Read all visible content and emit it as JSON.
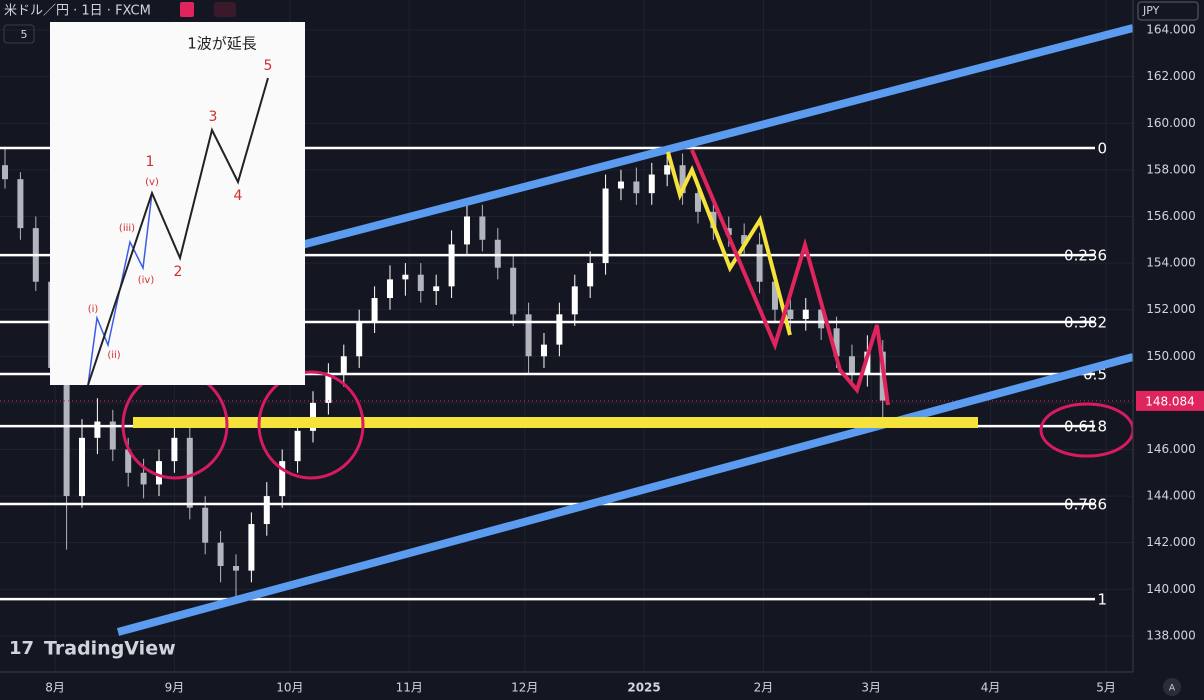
{
  "chart_data": {
    "type": "candlestick",
    "header": "米ドル／円 · 1日 · FXCM",
    "interval_box": "5",
    "currency": "JPY",
    "brand": "TradingView",
    "scale_mode": "A",
    "up_color": "#ffffff",
    "down_color": "#b2b5be",
    "xlim": [
      -14.3,
      280
    ],
    "ylim": [
      136.45,
      165.29
    ],
    "xticks": [
      {
        "value": 0,
        "label": "8月"
      },
      {
        "value": 31,
        "label": "9月"
      },
      {
        "value": 61,
        "label": "10月"
      },
      {
        "value": 92,
        "label": "11月"
      },
      {
        "value": 122,
        "label": "12月"
      },
      {
        "value": 153,
        "label": "2025"
      },
      {
        "value": 184,
        "label": "2月"
      },
      {
        "value": 212,
        "label": "3月"
      },
      {
        "value": 243,
        "label": "4月"
      },
      {
        "value": 273,
        "label": "5月"
      }
    ],
    "yticks": [
      {
        "value": 138,
        "label": "138.000"
      },
      {
        "value": 140,
        "label": "140.000"
      },
      {
        "value": 142,
        "label": "142.000"
      },
      {
        "value": 144,
        "label": "144.000"
      },
      {
        "value": 146,
        "label": "146.000"
      },
      {
        "value": 148,
        "label": "148.000"
      },
      {
        "value": 150,
        "label": "150.000"
      },
      {
        "value": 152,
        "label": "152.000"
      },
      {
        "value": 154,
        "label": "154.000"
      },
      {
        "value": 156,
        "label": "156.000"
      },
      {
        "value": 158,
        "label": "158.000"
      },
      {
        "value": 160,
        "label": "160.000"
      },
      {
        "value": 162,
        "label": "162.000"
      },
      {
        "value": 164,
        "label": "164.000"
      }
    ],
    "grid": true,
    "x": [
      -13,
      -9,
      -5,
      -1,
      3,
      7,
      11,
      15,
      19,
      23,
      27,
      31,
      35,
      39,
      43,
      47,
      51,
      55,
      59,
      63,
      67,
      71,
      75,
      79,
      83,
      87,
      91,
      95,
      99,
      103,
      107,
      111,
      115,
      119,
      123,
      127,
      131,
      135,
      139,
      143,
      147,
      151,
      155,
      159,
      163,
      167,
      171,
      175,
      179,
      183,
      187,
      191,
      195,
      199,
      203,
      207,
      211,
      215
    ],
    "ohlc": [
      [
        158.2,
        158.9,
        157.2,
        157.6
      ],
      [
        157.6,
        157.9,
        155.0,
        155.5
      ],
      [
        155.5,
        156.0,
        152.8,
        153.2
      ],
      [
        153.2,
        153.6,
        149.0,
        149.5
      ],
      [
        149.5,
        150.0,
        141.7,
        144.0
      ],
      [
        144.0,
        147.3,
        143.5,
        146.5
      ],
      [
        146.5,
        148.2,
        145.8,
        147.2
      ],
      [
        147.2,
        147.7,
        145.5,
        146.0
      ],
      [
        146.0,
        146.5,
        144.4,
        145.0
      ],
      [
        145.0,
        145.6,
        143.9,
        144.5
      ],
      [
        144.5,
        146.0,
        144.0,
        145.5
      ],
      [
        145.5,
        147.2,
        145.0,
        146.5
      ],
      [
        146.5,
        147.0,
        143.0,
        143.5
      ],
      [
        143.5,
        144.0,
        141.5,
        142.0
      ],
      [
        142.0,
        142.5,
        140.3,
        141.0
      ],
      [
        141.0,
        141.5,
        139.6,
        140.8
      ],
      [
        140.8,
        143.3,
        140.3,
        142.8
      ],
      [
        142.8,
        144.6,
        142.3,
        144.0
      ],
      [
        144.0,
        146.0,
        143.5,
        145.5
      ],
      [
        145.5,
        147.3,
        145.0,
        146.8
      ],
      [
        146.8,
        148.5,
        146.3,
        148.0
      ],
      [
        148.0,
        149.7,
        147.5,
        149.2
      ],
      [
        149.2,
        150.5,
        148.7,
        150.0
      ],
      [
        150.0,
        152.0,
        149.5,
        151.5
      ],
      [
        151.5,
        153.0,
        151.0,
        152.5
      ],
      [
        152.5,
        153.9,
        152.0,
        153.3
      ],
      [
        153.3,
        154.0,
        152.6,
        153.5
      ],
      [
        153.5,
        154.0,
        152.3,
        152.8
      ],
      [
        152.8,
        153.5,
        152.2,
        153.0
      ],
      [
        153.0,
        155.4,
        152.5,
        154.8
      ],
      [
        154.8,
        156.7,
        154.3,
        156.0
      ],
      [
        156.0,
        156.5,
        154.5,
        155.0
      ],
      [
        155.0,
        155.5,
        153.3,
        153.8
      ],
      [
        153.8,
        154.3,
        151.3,
        151.8
      ],
      [
        151.8,
        152.3,
        149.2,
        150.0
      ],
      [
        150.0,
        151.0,
        149.5,
        150.5
      ],
      [
        150.5,
        152.3,
        150.0,
        151.8
      ],
      [
        151.8,
        153.5,
        151.3,
        153.0
      ],
      [
        153.0,
        154.5,
        152.5,
        154.0
      ],
      [
        154.0,
        157.8,
        153.5,
        157.2
      ],
      [
        157.2,
        158.0,
        156.7,
        157.5
      ],
      [
        157.5,
        158.1,
        156.5,
        157.0
      ],
      [
        157.0,
        158.3,
        156.5,
        157.8
      ],
      [
        157.8,
        158.9,
        157.3,
        158.2
      ],
      [
        158.2,
        158.7,
        156.5,
        157.0
      ],
      [
        157.0,
        157.5,
        155.7,
        156.2
      ],
      [
        156.2,
        156.7,
        155.0,
        155.5
      ],
      [
        155.5,
        156.0,
        154.7,
        155.2
      ],
      [
        155.2,
        155.7,
        154.3,
        154.8
      ],
      [
        154.8,
        155.3,
        152.7,
        153.2
      ],
      [
        153.2,
        153.7,
        151.5,
        152.0
      ],
      [
        152.0,
        152.5,
        151.1,
        151.6
      ],
      [
        151.6,
        152.5,
        151.1,
        152.0
      ],
      [
        152.0,
        152.5,
        150.7,
        151.2
      ],
      [
        151.2,
        151.7,
        149.5,
        150.0
      ],
      [
        150.0,
        150.5,
        148.7,
        149.2
      ],
      [
        149.2,
        150.9,
        148.7,
        150.2
      ],
      [
        150.2,
        150.7,
        147.3,
        148.1
      ]
    ],
    "fib": [
      {
        "level": "0",
        "price": 158.94
      },
      {
        "level": "0.236",
        "price": 154.34
      },
      {
        "level": "0.382",
        "price": 151.47
      },
      {
        "level": "0.5",
        "price": 149.24
      },
      {
        "level": "0.618",
        "price": 147.0
      },
      {
        "level": "0.786",
        "price": 143.66
      },
      {
        "level": "1",
        "price": 139.58
      }
    ],
    "last_price": {
      "value": 148.084,
      "label": "148.084"
    },
    "inset": {
      "title": "1波が延長",
      "waves": [
        "1",
        "2",
        "3",
        "4",
        "5"
      ],
      "subwaves": [
        "(i)",
        "(ii)",
        "(iii)",
        "(iv)",
        "(v)"
      ]
    }
  }
}
